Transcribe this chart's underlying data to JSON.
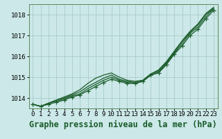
{
  "bg_color": "#cce8e8",
  "grid_color": "#aacccc",
  "line_color": "#1a5c2a",
  "title": "Graphe pression niveau de la mer (hPa)",
  "xlim": [
    -0.5,
    23.5
  ],
  "ylim": [
    1013.5,
    1018.5
  ],
  "yticks": [
    1014,
    1015,
    1016,
    1017,
    1018
  ],
  "xticks": [
    0,
    1,
    2,
    3,
    4,
    5,
    6,
    7,
    8,
    9,
    10,
    11,
    12,
    13,
    14,
    15,
    16,
    17,
    18,
    19,
    20,
    21,
    22,
    23
  ],
  "series": [
    {
      "y": [
        1013.7,
        1013.6,
        1013.7,
        1013.8,
        1013.9,
        1014.05,
        1014.15,
        1014.35,
        1014.55,
        1014.75,
        1014.9,
        1014.8,
        1014.7,
        1014.7,
        1014.8,
        1015.1,
        1015.2,
        1015.6,
        1016.1,
        1016.5,
        1017.0,
        1017.3,
        1017.8,
        1018.2
      ],
      "marker": true
    },
    {
      "y": [
        1013.7,
        1013.6,
        1013.75,
        1013.85,
        1013.95,
        1014.1,
        1014.2,
        1014.45,
        1014.65,
        1014.85,
        1015.0,
        1014.85,
        1014.75,
        1014.7,
        1014.8,
        1015.1,
        1015.25,
        1015.65,
        1016.15,
        1016.6,
        1017.1,
        1017.4,
        1017.9,
        1018.28
      ],
      "marker": false
    },
    {
      "y": [
        1013.7,
        1013.6,
        1013.75,
        1013.9,
        1014.0,
        1014.15,
        1014.3,
        1014.55,
        1014.75,
        1014.95,
        1015.1,
        1014.9,
        1014.8,
        1014.75,
        1014.85,
        1015.15,
        1015.3,
        1015.7,
        1016.2,
        1016.7,
        1017.15,
        1017.5,
        1018.0,
        1018.3
      ],
      "marker": false
    },
    {
      "y": [
        1013.7,
        1013.6,
        1013.75,
        1013.9,
        1014.05,
        1014.2,
        1014.4,
        1014.7,
        1014.95,
        1015.1,
        1015.2,
        1015.0,
        1014.85,
        1014.8,
        1014.85,
        1015.15,
        1015.35,
        1015.75,
        1016.25,
        1016.75,
        1017.2,
        1017.55,
        1018.05,
        1018.35
      ],
      "marker": false
    }
  ],
  "markersize": 4,
  "linewidth": 0.9,
  "title_fontsize": 8.5,
  "tick_fontsize": 6.5
}
